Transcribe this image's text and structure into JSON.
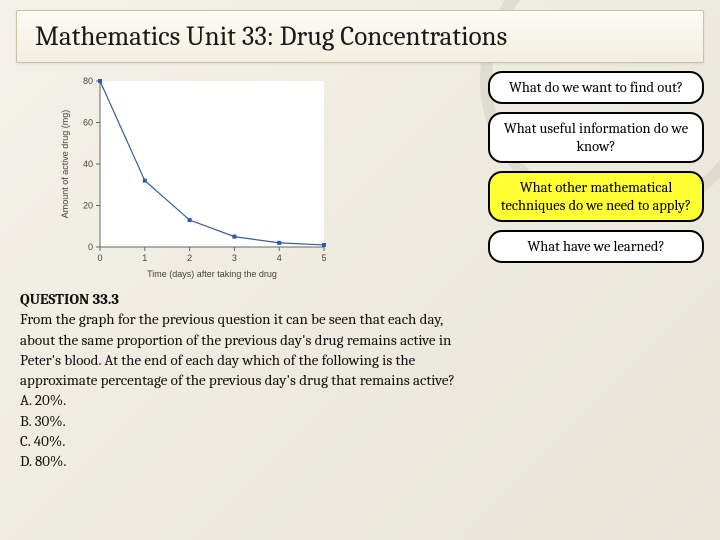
{
  "title": "Mathematics Unit 33: Drug Concentrations",
  "prompts": {
    "p1": "What do we want to find out?",
    "p2": "What useful information do we know?",
    "p3": "What other mathematical techniques do we need to apply?",
    "p4": "What have we learned?"
  },
  "question": {
    "heading": "QUESTION 33.3",
    "body": "From the graph for the previous question it can be seen that each day, about the same proportion of the previous day's drug remains active in Peter's blood. At the end of each day which of the following is the approximate percentage of the previous day's drug that remains active?",
    "options": {
      "a": "A.   20%.",
      "b": "B.   30%.",
      "c": "C.   40%.",
      "d": "D.   80%."
    }
  },
  "chart": {
    "type": "line",
    "xlabel": "Time (days) after taking the drug",
    "ylabel": "Amount of active drug (mg)",
    "xlim": [
      0,
      5
    ],
    "ylim": [
      0,
      80
    ],
    "xtick_step": 1,
    "ytick_step": 20,
    "line_color": "#3b5b9a",
    "marker_color": "#2e5aa8",
    "marker_size": 4,
    "line_width": 1.2,
    "background_color": "#ffffff",
    "axis_color": "#666666",
    "tick_font_size": 9,
    "label_font_size": 9,
    "data": {
      "x": [
        0,
        1,
        2,
        3,
        4,
        5
      ],
      "y": [
        80,
        32,
        13,
        5,
        2,
        1
      ]
    }
  }
}
